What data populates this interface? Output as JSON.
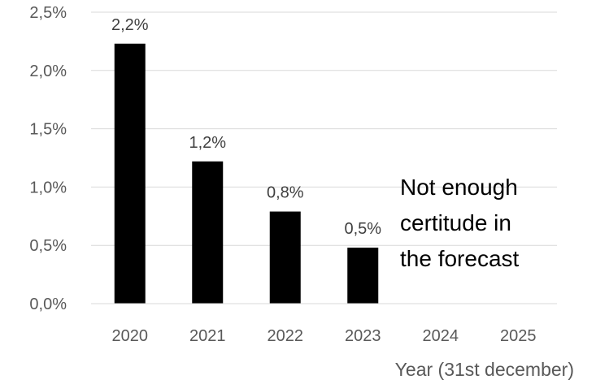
{
  "chart_data": {
    "type": "bar",
    "categories": [
      "2020",
      "2021",
      "2022",
      "2023",
      "2024",
      "2025"
    ],
    "values": [
      2.23,
      1.22,
      0.79,
      0.48,
      null,
      null
    ],
    "data_labels": [
      "2,2%",
      "1,2%",
      "0,8%",
      "0,5%",
      "",
      ""
    ],
    "title": "",
    "xlabel": "Year (31st december)",
    "ylabel": "",
    "ylim": [
      0,
      2.5
    ],
    "y_ticks": [
      {
        "value": 0,
        "label": "0,0%"
      },
      {
        "value": 0.5,
        "label": "0,5%"
      },
      {
        "value": 1.0,
        "label": "1,0%"
      },
      {
        "value": 1.5,
        "label": "1,5%"
      },
      {
        "value": 2.0,
        "label": "2,0%"
      },
      {
        "value": 2.5,
        "label": "2,5%"
      }
    ],
    "grid": true,
    "legend": "none",
    "annotation": [
      "Not enough",
      "certitude in",
      "the forecast"
    ],
    "colors": {
      "bar": "#000000",
      "grid": "#d9d9d9",
      "axis": "#d9d9d9"
    }
  }
}
